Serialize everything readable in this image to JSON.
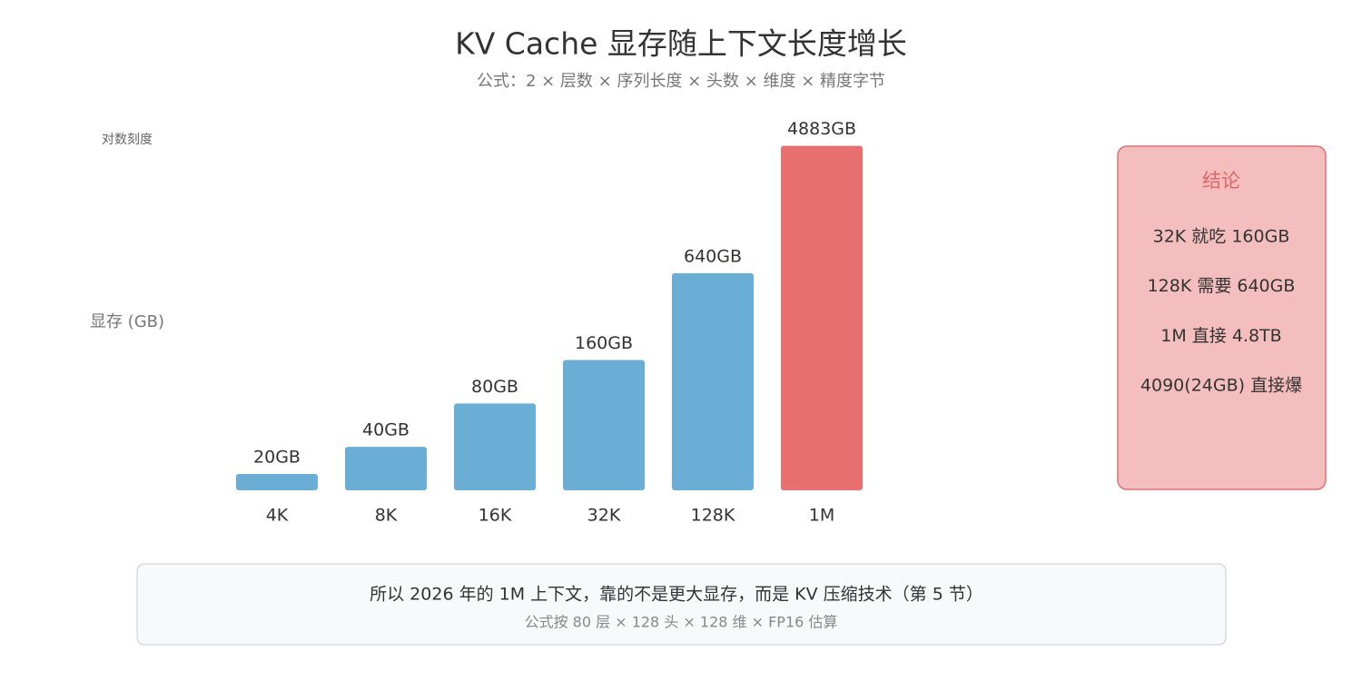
{
  "chart_data": {
    "type": "bar",
    "title": "KV Cache 显存随上下文长度增长",
    "subtitle": "公式：2 × 层数 × 序列长度 × 头数 × 维度 × 精度字节",
    "y_label": "显存 (GB)",
    "scale_note": "对数刻度",
    "log_scale": true,
    "categories": [
      "4K",
      "8K",
      "16K",
      "32K",
      "128K",
      "1M"
    ],
    "values": [
      20,
      40,
      80,
      160,
      640,
      4883
    ],
    "value_labels": [
      "20GB",
      "40GB",
      "80GB",
      "160GB",
      "640GB",
      "4883GB"
    ],
    "colors": [
      "#6aaed6",
      "#6aaed6",
      "#6aaed6",
      "#6aaed6",
      "#6aaed6",
      "#e87070"
    ],
    "ylim": [
      20,
      5000
    ]
  },
  "panel": {
    "title": "结论",
    "items": [
      "32K 就吃 160GB",
      "128K 需要 640GB",
      "1M 直接 4.8TB",
      "4090(24GB) 直接爆"
    ]
  },
  "footer": {
    "text": "所以 2026 年的 1M 上下文，靠的不是更大显存，而是 KV 压缩技术（第 5 节）",
    "note": "公式按 80 层 × 128 头 × 128 维 × FP16 估算"
  }
}
